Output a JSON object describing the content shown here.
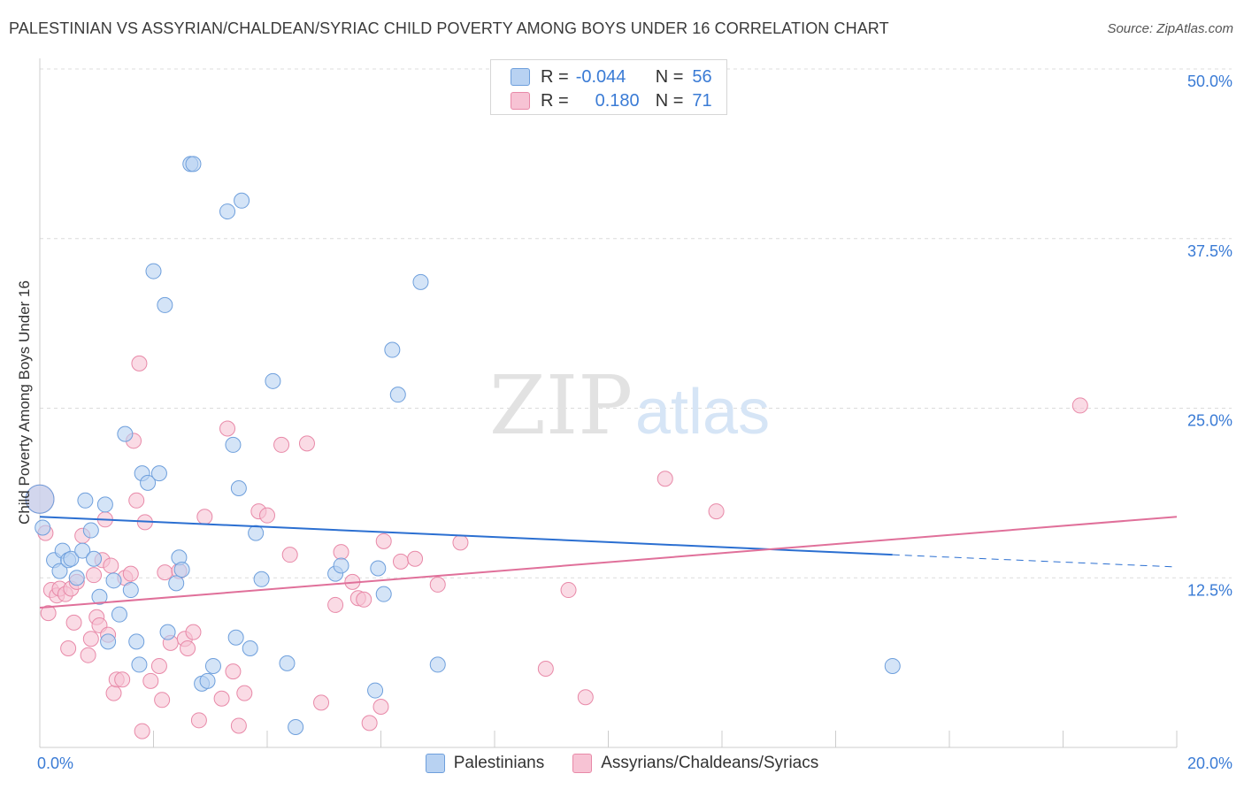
{
  "title": "PALESTINIAN VS ASSYRIAN/CHALDEAN/SYRIAC CHILD POVERTY AMONG BOYS UNDER 16 CORRELATION CHART",
  "source": "Source: ZipAtlas.com",
  "watermark": {
    "zip": "ZIP",
    "atlas": "atlas"
  },
  "legend_top": {
    "rows": [
      {
        "r_label": "R =",
        "r_value": "-0.044",
        "n_label": "N =",
        "n_value": "56"
      },
      {
        "r_label": "R =",
        "r_value": "0.180",
        "n_label": "N =",
        "n_value": "71"
      }
    ]
  },
  "bottom_legend": [
    "Palestinians",
    "Assyrians/Chaldeans/Syriacs"
  ],
  "colors": {
    "blue_fill": "#b8d2f2",
    "blue_stroke": "#6e9fdc",
    "blue_line": "#2b6fd1",
    "pink_fill": "#f7c3d4",
    "pink_stroke": "#e889a8",
    "pink_line": "#e0709a",
    "tick_text": "#3a7bd5",
    "grid": "#dcdcdc"
  },
  "chart_data": {
    "type": "scatter",
    "title": "PALESTINIAN VS ASSYRIAN/CHALDEAN/SYRIAC CHILD POVERTY AMONG BOYS UNDER 16 CORRELATION CHART",
    "xlabel": "",
    "ylabel": "Child Poverty Among Boys Under 16",
    "xlim": [
      0,
      20
    ],
    "ylim": [
      0,
      50
    ],
    "x_tick_labels": [
      "0.0%",
      "20.0%"
    ],
    "y_tick_values": [
      12.5,
      25.0,
      37.5,
      50.0
    ],
    "y_tick_labels": [
      "12.5%",
      "25.0%",
      "37.5%",
      "50.0%"
    ],
    "grid": true,
    "legend_position": "top-center",
    "series": [
      {
        "name": "Palestinians",
        "r": -0.044,
        "n": 56,
        "trend": {
          "x": [
            0,
            15.0
          ],
          "y": [
            17.0,
            14.2
          ],
          "dashed_to": [
            20.0,
            13.3
          ]
        },
        "points": [
          [
            0.0,
            18.3
          ],
          [
            0.05,
            16.2
          ],
          [
            0.25,
            13.8
          ],
          [
            0.35,
            13.0
          ],
          [
            0.4,
            14.5
          ],
          [
            0.5,
            13.8
          ],
          [
            0.55,
            13.9
          ],
          [
            0.65,
            12.5
          ],
          [
            0.75,
            14.5
          ],
          [
            0.8,
            18.2
          ],
          [
            0.9,
            16.0
          ],
          [
            0.95,
            13.9
          ],
          [
            1.05,
            11.1
          ],
          [
            1.15,
            17.9
          ],
          [
            1.2,
            7.8
          ],
          [
            1.3,
            12.3
          ],
          [
            1.4,
            9.8
          ],
          [
            1.5,
            23.1
          ],
          [
            1.6,
            11.6
          ],
          [
            1.7,
            7.8
          ],
          [
            1.75,
            6.1
          ],
          [
            1.8,
            20.2
          ],
          [
            1.9,
            19.5
          ],
          [
            2.0,
            35.1
          ],
          [
            2.1,
            20.2
          ],
          [
            2.2,
            32.6
          ],
          [
            2.25,
            8.5
          ],
          [
            2.4,
            12.1
          ],
          [
            2.45,
            14.0
          ],
          [
            2.5,
            13.1
          ],
          [
            2.65,
            43.0
          ],
          [
            2.7,
            43.0
          ],
          [
            2.85,
            4.7
          ],
          [
            2.95,
            4.9
          ],
          [
            3.05,
            6.0
          ],
          [
            3.3,
            39.5
          ],
          [
            3.4,
            22.3
          ],
          [
            3.45,
            8.1
          ],
          [
            3.5,
            19.1
          ],
          [
            3.55,
            40.3
          ],
          [
            3.7,
            7.3
          ],
          [
            3.8,
            15.8
          ],
          [
            3.9,
            12.4
          ],
          [
            4.1,
            27.0
          ],
          [
            4.35,
            6.2
          ],
          [
            4.5,
            1.5
          ],
          [
            5.2,
            12.8
          ],
          [
            5.3,
            13.4
          ],
          [
            5.9,
            4.2
          ],
          [
            5.95,
            13.2
          ],
          [
            6.05,
            11.3
          ],
          [
            6.2,
            29.3
          ],
          [
            6.3,
            26.0
          ],
          [
            6.7,
            34.3
          ],
          [
            7.0,
            6.1
          ],
          [
            15.0,
            6.0
          ]
        ]
      },
      {
        "name": "Assyrians/Chaldeans/Syriacs",
        "r": 0.18,
        "n": 71,
        "trend": {
          "x": [
            0,
            20.0
          ],
          "y": [
            10.3,
            17.0
          ]
        },
        "points": [
          [
            0.0,
            18.3
          ],
          [
            0.1,
            15.8
          ],
          [
            0.15,
            9.9
          ],
          [
            0.2,
            11.6
          ],
          [
            0.3,
            11.2
          ],
          [
            0.35,
            11.7
          ],
          [
            0.45,
            11.3
          ],
          [
            0.5,
            7.3
          ],
          [
            0.55,
            11.7
          ],
          [
            0.6,
            9.2
          ],
          [
            0.65,
            12.2
          ],
          [
            0.75,
            15.6
          ],
          [
            0.85,
            6.8
          ],
          [
            0.9,
            8.0
          ],
          [
            0.95,
            12.7
          ],
          [
            1.0,
            9.6
          ],
          [
            1.05,
            9.0
          ],
          [
            1.1,
            13.8
          ],
          [
            1.15,
            16.8
          ],
          [
            1.2,
            8.3
          ],
          [
            1.25,
            13.4
          ],
          [
            1.3,
            4.0
          ],
          [
            1.35,
            5.0
          ],
          [
            1.45,
            5.0
          ],
          [
            1.5,
            12.5
          ],
          [
            1.6,
            12.8
          ],
          [
            1.65,
            22.6
          ],
          [
            1.7,
            18.2
          ],
          [
            1.75,
            28.3
          ],
          [
            1.8,
            1.2
          ],
          [
            1.85,
            16.6
          ],
          [
            1.95,
            4.9
          ],
          [
            2.1,
            6.0
          ],
          [
            2.15,
            3.5
          ],
          [
            2.2,
            12.9
          ],
          [
            2.3,
            7.7
          ],
          [
            2.45,
            13.0
          ],
          [
            2.55,
            8.0
          ],
          [
            2.6,
            7.3
          ],
          [
            2.7,
            8.5
          ],
          [
            2.8,
            2.0
          ],
          [
            2.9,
            17.0
          ],
          [
            3.2,
            3.6
          ],
          [
            3.3,
            23.5
          ],
          [
            3.4,
            5.6
          ],
          [
            3.5,
            1.6
          ],
          [
            3.6,
            4.0
          ],
          [
            3.85,
            17.4
          ],
          [
            4.0,
            17.1
          ],
          [
            4.25,
            22.3
          ],
          [
            4.4,
            14.2
          ],
          [
            4.7,
            22.4
          ],
          [
            4.95,
            3.3
          ],
          [
            5.2,
            10.5
          ],
          [
            5.3,
            14.4
          ],
          [
            5.5,
            12.2
          ],
          [
            5.6,
            11.0
          ],
          [
            5.7,
            10.9
          ],
          [
            5.8,
            1.8
          ],
          [
            6.0,
            3.0
          ],
          [
            6.05,
            15.2
          ],
          [
            6.35,
            13.7
          ],
          [
            6.6,
            13.9
          ],
          [
            7.0,
            12.0
          ],
          [
            7.4,
            15.1
          ],
          [
            8.9,
            5.8
          ],
          [
            9.3,
            11.6
          ],
          [
            9.6,
            3.7
          ],
          [
            11.0,
            19.8
          ],
          [
            11.9,
            17.4
          ],
          [
            18.3,
            25.2
          ]
        ]
      }
    ]
  }
}
